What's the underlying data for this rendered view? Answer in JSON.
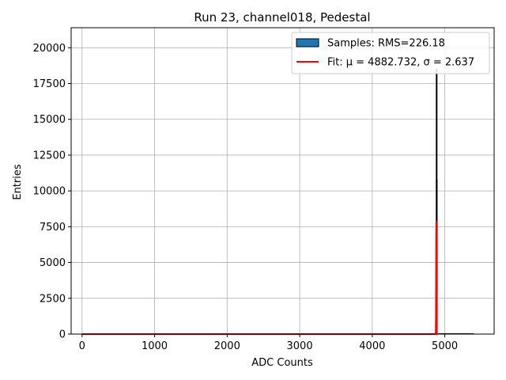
{
  "chart_data": {
    "type": "bar",
    "title": "Run 23, channel018, Pedestal",
    "xlabel": "ADC Counts",
    "ylabel": "Entries",
    "xlim": [
      -150,
      5680
    ],
    "ylim": [
      0,
      21400
    ],
    "xticks": [
      0,
      1000,
      2000,
      3000,
      4000,
      5000
    ],
    "yticks": [
      0,
      2500,
      5000,
      7500,
      10000,
      12500,
      15000,
      17500,
      20000
    ],
    "grid": true,
    "legend_position": "top-right",
    "legend": [
      {
        "label": "Samples: RMS=226.18",
        "kind": "patch",
        "color": "#1f77b4",
        "edge": "#000000"
      },
      {
        "label": "Fit: μ = 4882.732, σ = 2.637",
        "kind": "line",
        "color": "#ff0000"
      }
    ],
    "histogram": {
      "name": "Samples: RMS=226.18",
      "color": "#1f77b4",
      "bin_width": 1,
      "bins": [
        {
          "x": 4882,
          "count": 18500
        },
        {
          "x": 4883,
          "count": 10800
        }
      ],
      "baseline_range": [
        0,
        5400
      ]
    },
    "fit": {
      "name": "Fit: μ = 4882.732, σ = 2.637",
      "color": "#ff0000",
      "mu": 4882.732,
      "sigma": 2.637,
      "peak": 7900
    }
  }
}
